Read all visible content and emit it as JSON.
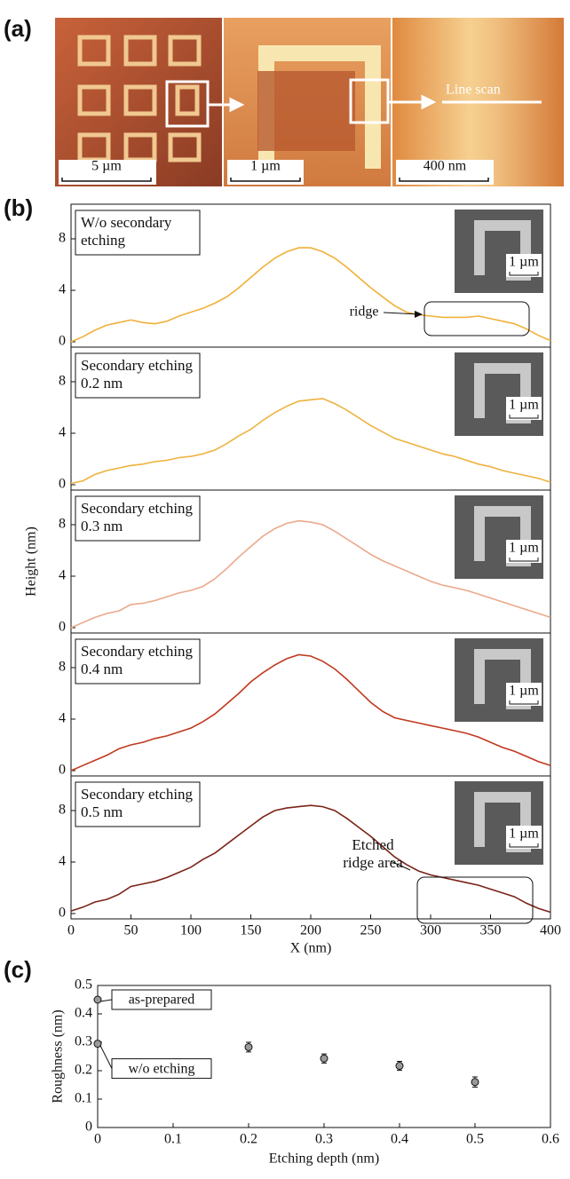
{
  "panel_a": {
    "label": "(a)",
    "scale_bars": [
      "5 µm",
      "1 µm",
      "400 nm"
    ],
    "annotation": "Line scan"
  },
  "panel_b_label": "(b)",
  "panel_c_label": "(c)",
  "chart_data": [
    {
      "type": "line",
      "annotation": "W/o secondary etching",
      "inset_scale": "1 µm",
      "callout": "ridge",
      "x": [
        0,
        10,
        20,
        30,
        40,
        50,
        60,
        70,
        80,
        90,
        100,
        110,
        120,
        130,
        140,
        150,
        160,
        170,
        180,
        190,
        200,
        210,
        220,
        230,
        240,
        250,
        260,
        270,
        280,
        290,
        300,
        310,
        320,
        330,
        340,
        350,
        360,
        370,
        380,
        390,
        400
      ],
      "series": [
        {
          "color": "#f0b13a",
          "values": [
            0,
            0.4,
            0.9,
            1.3,
            1.5,
            1.7,
            1.5,
            1.4,
            1.6,
            2.0,
            2.3,
            2.6,
            3.0,
            3.5,
            4.2,
            5.0,
            5.8,
            6.5,
            7.0,
            7.3,
            7.3,
            7.0,
            6.5,
            5.8,
            5.0,
            4.2,
            3.5,
            2.8,
            2.3,
            2.1,
            2.0,
            1.9,
            1.9,
            1.9,
            2.0,
            1.8,
            1.6,
            1.4,
            1.0,
            0.5,
            0.1
          ]
        }
      ],
      "xlim": [
        0,
        400
      ],
      "ylim": [
        0,
        10
      ],
      "yticks": [
        0,
        4,
        8
      ]
    },
    {
      "type": "line",
      "annotation": "Secondary etching 0.2 nm",
      "inset_scale": "1 µm",
      "x": [
        0,
        10,
        20,
        30,
        40,
        50,
        60,
        70,
        80,
        90,
        100,
        110,
        120,
        130,
        140,
        150,
        160,
        170,
        180,
        190,
        200,
        210,
        220,
        230,
        240,
        250,
        260,
        270,
        280,
        290,
        300,
        310,
        320,
        330,
        340,
        350,
        360,
        370,
        380,
        390,
        400
      ],
      "series": [
        {
          "color": "#eeb23e",
          "values": [
            0.1,
            0.3,
            0.8,
            1.1,
            1.3,
            1.5,
            1.6,
            1.8,
            1.9,
            2.1,
            2.2,
            2.4,
            2.7,
            3.2,
            3.8,
            4.3,
            5.0,
            5.6,
            6.1,
            6.5,
            6.6,
            6.7,
            6.3,
            5.8,
            5.2,
            4.6,
            4.1,
            3.6,
            3.3,
            3.0,
            2.7,
            2.4,
            2.2,
            1.9,
            1.6,
            1.4,
            1.1,
            0.9,
            0.7,
            0.5,
            0.2
          ]
        }
      ],
      "xlim": [
        0,
        400
      ],
      "ylim": [
        0,
        10
      ],
      "yticks": [
        0,
        4,
        8
      ]
    },
    {
      "type": "line",
      "annotation": "Secondary etching 0.3 nm",
      "inset_scale": "1 µm",
      "ylabel": "Height (nm)",
      "x": [
        0,
        10,
        20,
        30,
        40,
        50,
        60,
        70,
        80,
        90,
        100,
        110,
        120,
        130,
        140,
        150,
        160,
        170,
        180,
        190,
        200,
        210,
        220,
        230,
        240,
        250,
        260,
        270,
        280,
        290,
        300,
        310,
        320,
        330,
        340,
        350,
        360,
        370,
        380,
        390,
        400
      ],
      "series": [
        {
          "color": "#eba88a",
          "values": [
            0,
            0.4,
            0.8,
            1.1,
            1.3,
            1.8,
            1.9,
            2.1,
            2.4,
            2.7,
            2.9,
            3.2,
            3.8,
            4.6,
            5.5,
            6.3,
            7.1,
            7.7,
            8.1,
            8.3,
            8.2,
            8.0,
            7.5,
            6.9,
            6.3,
            5.7,
            5.2,
            4.8,
            4.4,
            4.0,
            3.6,
            3.3,
            3.1,
            2.9,
            2.6,
            2.3,
            2.0,
            1.7,
            1.4,
            1.1,
            0.8
          ]
        }
      ],
      "xlim": [
        0,
        400
      ],
      "ylim": [
        0,
        10
      ],
      "yticks": [
        0,
        4,
        8
      ]
    },
    {
      "type": "line",
      "annotation": "Secondary etching 0.4 nm",
      "inset_scale": "1 µm",
      "x": [
        0,
        10,
        20,
        30,
        40,
        50,
        60,
        70,
        80,
        90,
        100,
        110,
        120,
        130,
        140,
        150,
        160,
        170,
        180,
        190,
        200,
        210,
        220,
        230,
        240,
        250,
        260,
        270,
        280,
        290,
        300,
        310,
        320,
        330,
        340,
        350,
        360,
        370,
        380,
        390,
        400
      ],
      "series": [
        {
          "color": "#c0391f",
          "values": [
            0,
            0.4,
            0.8,
            1.2,
            1.7,
            2.0,
            2.2,
            2.5,
            2.7,
            3.0,
            3.3,
            3.8,
            4.4,
            5.2,
            6.0,
            6.9,
            7.6,
            8.2,
            8.7,
            9.0,
            8.9,
            8.5,
            7.9,
            7.1,
            6.2,
            5.3,
            4.6,
            4.1,
            3.9,
            3.7,
            3.5,
            3.3,
            3.1,
            2.9,
            2.6,
            2.2,
            1.8,
            1.5,
            1.1,
            0.7,
            0.4
          ]
        }
      ],
      "xlim": [
        0,
        400
      ],
      "ylim": [
        0,
        10
      ],
      "yticks": [
        0,
        4,
        8
      ]
    },
    {
      "type": "line",
      "annotation": "Secondary etching 0.5 nm",
      "inset_scale": "1 µm",
      "callout": "Etched ridge area",
      "xlabel": "X (nm)",
      "x": [
        0,
        10,
        20,
        30,
        40,
        50,
        60,
        70,
        80,
        90,
        100,
        110,
        120,
        130,
        140,
        150,
        160,
        170,
        180,
        190,
        200,
        210,
        220,
        230,
        240,
        250,
        260,
        270,
        280,
        290,
        300,
        310,
        320,
        330,
        340,
        350,
        360,
        370,
        380,
        390,
        400
      ],
      "series": [
        {
          "color": "#7a2418",
          "values": [
            0.2,
            0.5,
            0.9,
            1.1,
            1.5,
            2.1,
            2.3,
            2.5,
            2.8,
            3.2,
            3.6,
            4.2,
            4.7,
            5.4,
            6.1,
            6.8,
            7.5,
            8.0,
            8.2,
            8.3,
            8.4,
            8.3,
            8.0,
            7.4,
            6.7,
            6.0,
            5.2,
            4.4,
            3.8,
            3.3,
            3.0,
            2.8,
            2.6,
            2.4,
            2.2,
            1.9,
            1.6,
            1.3,
            0.8,
            0.4,
            0.1
          ]
        }
      ],
      "xlim": [
        0,
        400
      ],
      "ylim": [
        0,
        10
      ],
      "yticks": [
        0,
        4,
        8
      ],
      "xticks": [
        0,
        50,
        100,
        150,
        200,
        250,
        300,
        350,
        400
      ]
    },
    {
      "type": "scatter",
      "xlabel": "Etching depth (nm)",
      "ylabel": "Roughness (nm)",
      "annotations": [
        "as-prepared",
        "w/o etching"
      ],
      "x": [
        0,
        0,
        0.2,
        0.3,
        0.4,
        0.5
      ],
      "values": [
        0.45,
        0.295,
        0.283,
        0.243,
        0.217,
        0.16
      ],
      "errors": [
        null,
        0.01,
        0.017,
        0.016,
        0.016,
        0.018
      ],
      "color": "#9a9a9a",
      "xlim": [
        0,
        0.6
      ],
      "xticks": [
        0,
        0.1,
        0.2,
        0.3,
        0.4,
        0.5,
        0.6
      ],
      "ylim": [
        0,
        0.5
      ],
      "yticks": [
        0,
        0.1,
        0.2,
        0.3,
        0.4,
        0.5
      ]
    }
  ]
}
